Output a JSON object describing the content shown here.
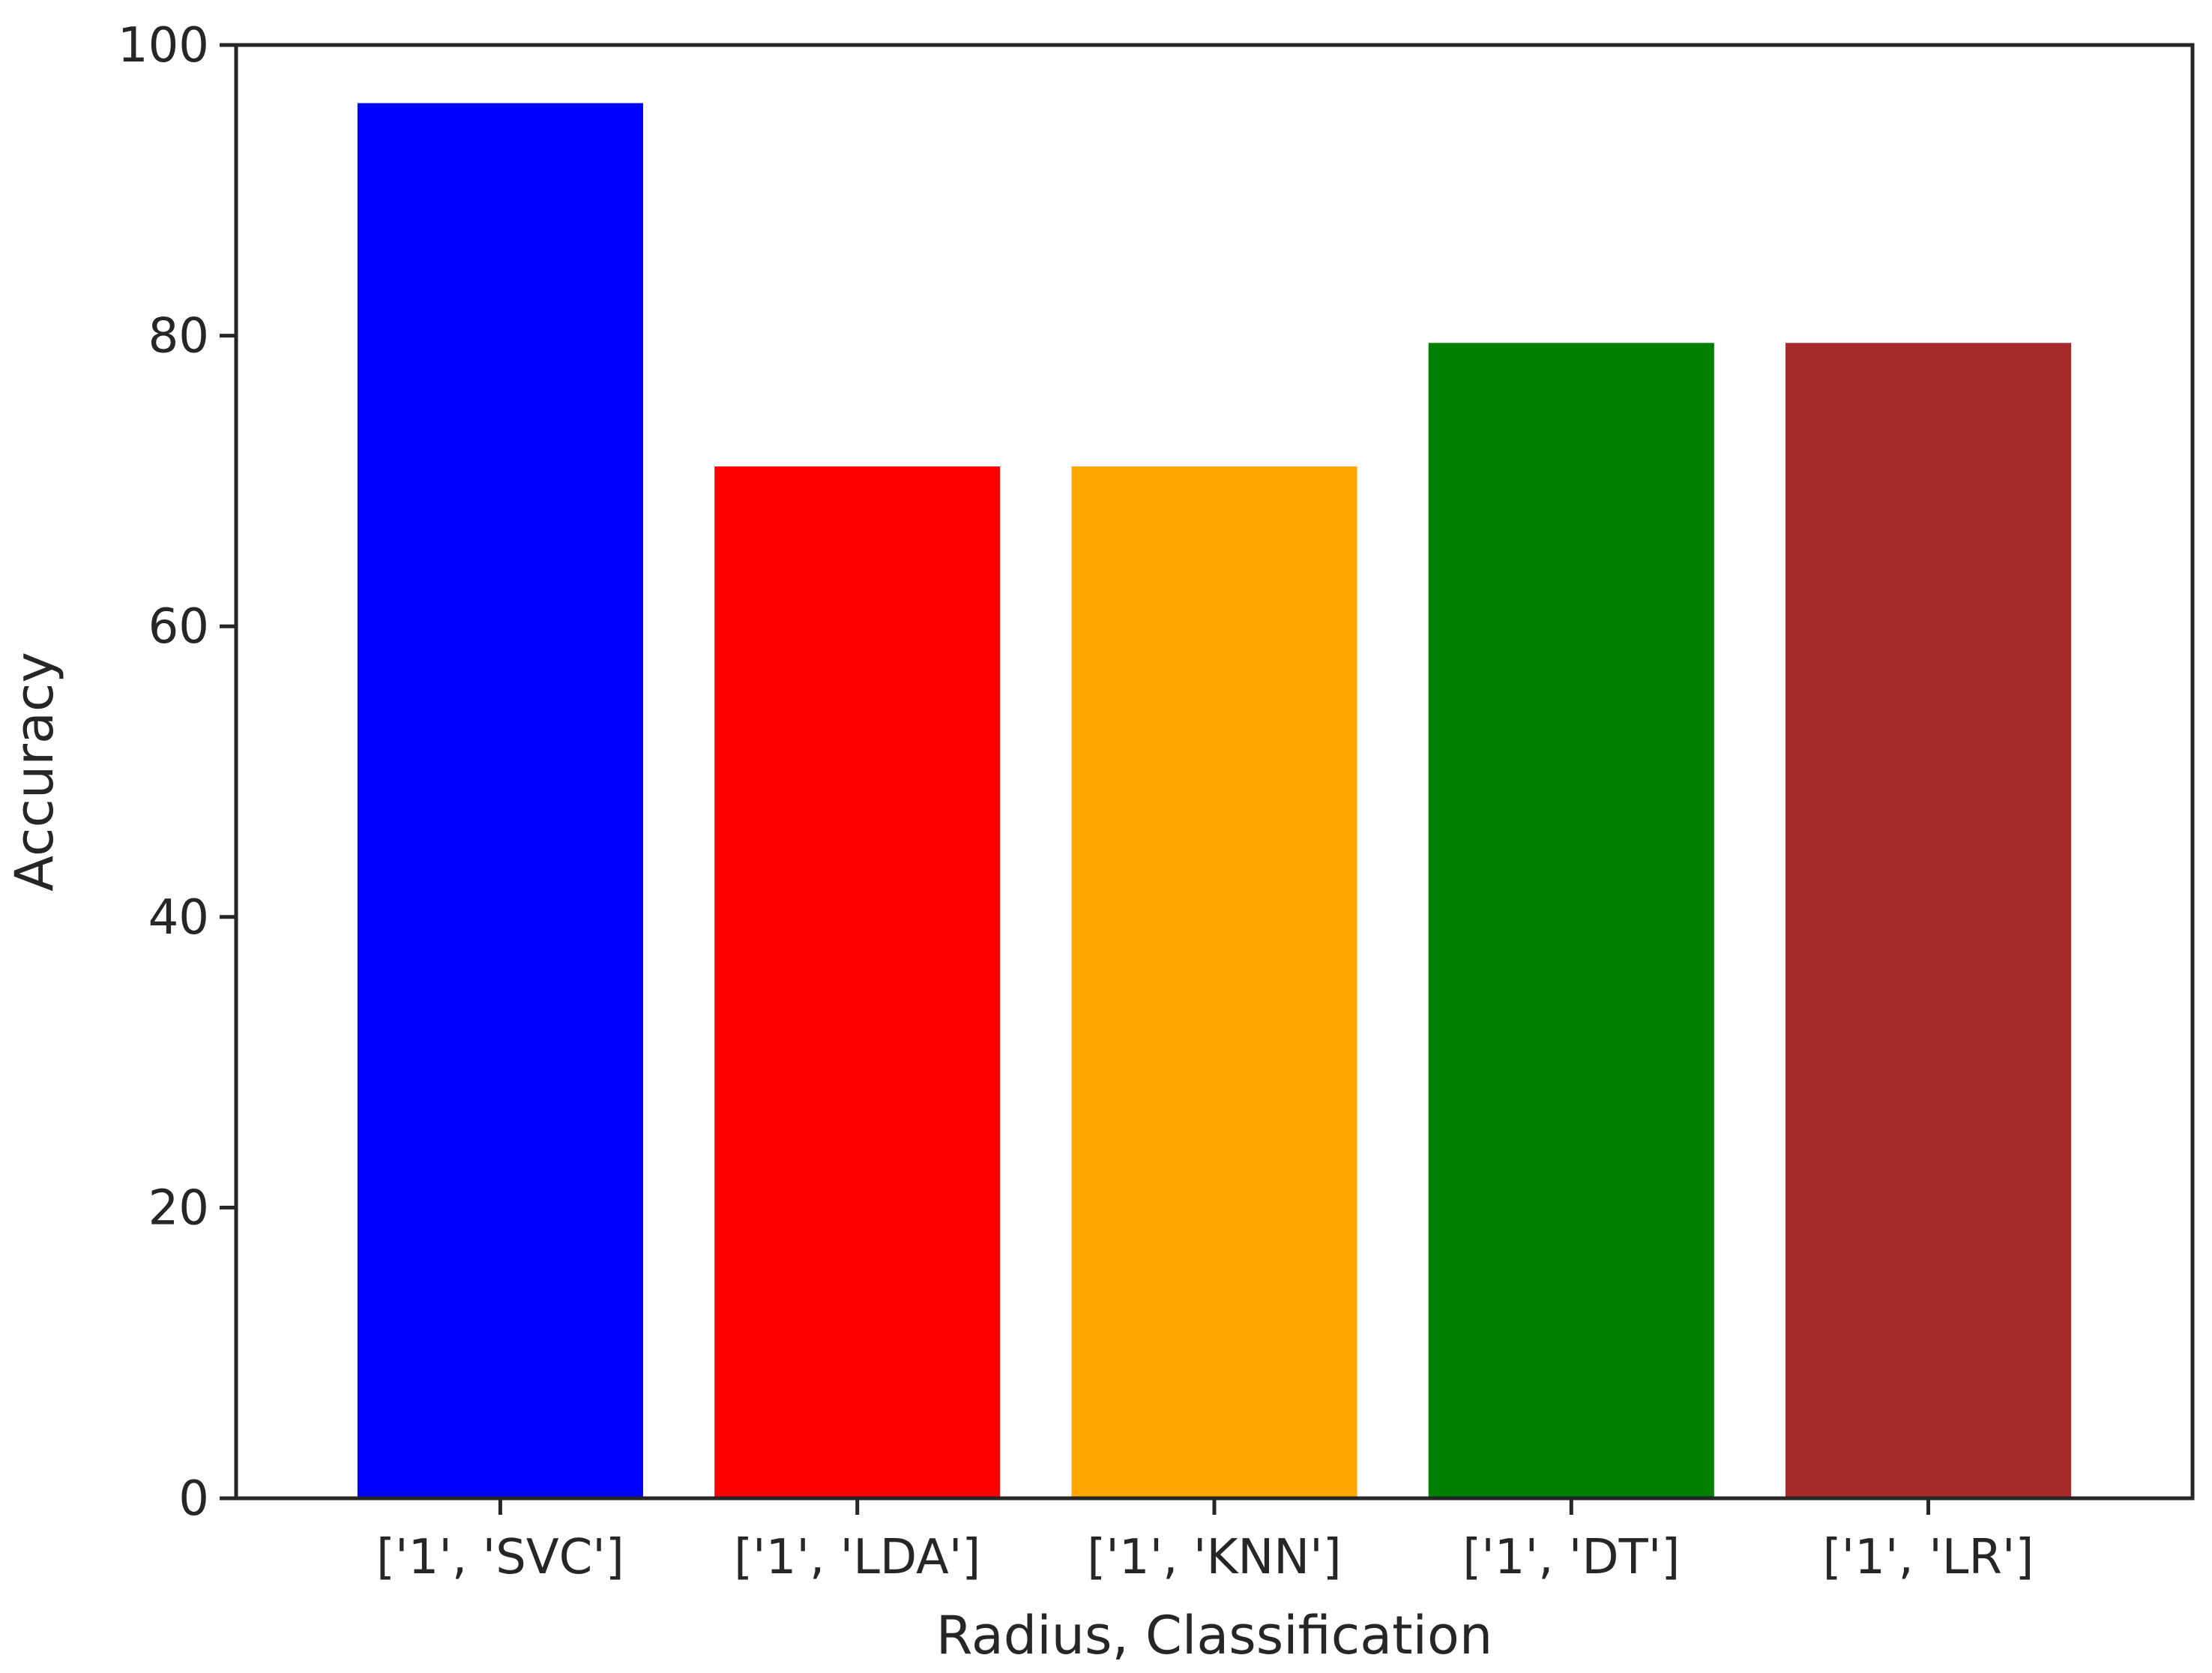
{
  "chart_data": {
    "type": "bar",
    "title": "",
    "xlabel": "Radius, Classification",
    "ylabel": "Accuracy",
    "categories": [
      "['1', 'SVC']",
      "['1', 'LDA']",
      "['1', 'KNN']",
      "['1', 'DT']",
      "['1', 'LR']"
    ],
    "values": [
      96,
      71,
      71,
      79.5,
      79.5
    ],
    "colors": [
      "#0000ff",
      "#ff0000",
      "#ffa500",
      "#008000",
      "#a52a2a"
    ],
    "ylim": [
      0,
      100
    ],
    "yticks": [
      "0",
      "20",
      "40",
      "60",
      "80",
      "100"
    ],
    "grid": false,
    "legend": false
  }
}
